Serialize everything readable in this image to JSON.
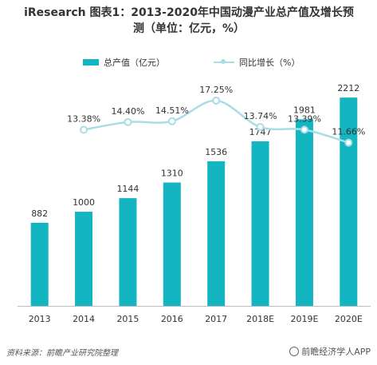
{
  "title_line1": "iResearch 图表1：2013-2020年中国动漫产业总产值及增长预",
  "title_line2": "测（单位：亿元，%）",
  "legend": {
    "bar_label": "总产值（亿元）",
    "line_label": "同比增长（%）"
  },
  "colors": {
    "bar": "#13b5c1",
    "line": "#a9dde6"
  },
  "chart_data": {
    "type": "bar",
    "categories": [
      "2013",
      "2014",
      "2015",
      "2016",
      "2017",
      "2018E",
      "2019E",
      "2020E"
    ],
    "series": [
      {
        "name": "总产值（亿元）",
        "type": "bar",
        "values": [
          882,
          1000,
          1144,
          1310,
          1536,
          1747,
          1981,
          2212
        ],
        "labels": [
          "882",
          "1000",
          "1144",
          "1310",
          "1536",
          "1747",
          "1981",
          "2212"
        ]
      },
      {
        "name": "同比增长（%）",
        "type": "line",
        "values": [
          null,
          13.38,
          14.4,
          14.51,
          17.25,
          13.74,
          13.39,
          11.66
        ],
        "labels": [
          "",
          "13.38%",
          "14.40%",
          "14.51%",
          "17.25%",
          "13.74%",
          "13.39%",
          "11.66%"
        ]
      }
    ],
    "ylim_bar": [
      0,
      2400
    ],
    "ylim_line": [
      -10,
      20
    ],
    "grid": false,
    "legend_position": "top"
  },
  "footer": {
    "source": "资料来源：前瞻产业研究院整理",
    "brand": "前瞻经济学人APP"
  }
}
